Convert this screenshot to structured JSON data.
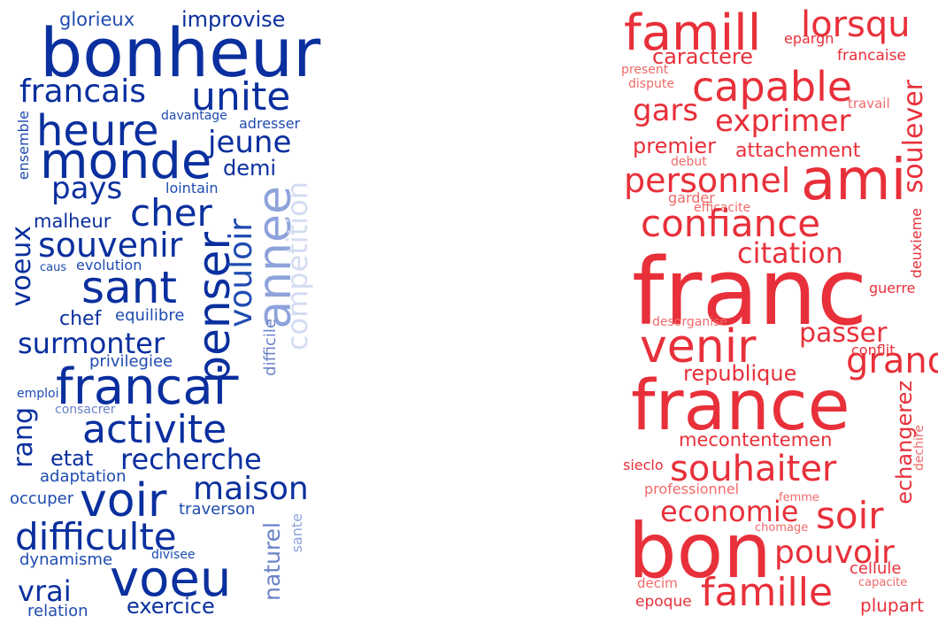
{
  "clouds": [
    {
      "id": "blue",
      "color": "#0a2f9e",
      "words": [
        "glorieux",
        "improvise",
        "bonheur",
        "francais",
        "unite",
        "heure",
        "monde",
        "jeune",
        "demi",
        "pays",
        "cher",
        "lointain",
        "davantage",
        "adresser",
        "ensemble",
        "malheur",
        "souvenir",
        "penser",
        "vouloir",
        "annee",
        "competition",
        "voeux",
        "sant",
        "caus",
        "evolution",
        "chef",
        "equilibre",
        "surmonter",
        "privilegiee",
        "difficile",
        "francai",
        "emploi",
        "consacrer",
        "rang",
        "activite",
        "etat",
        "recherche",
        "adaptation",
        "maison",
        "voir",
        "occuper",
        "traverson",
        "difficulte",
        "naturel",
        "sante",
        "divisee",
        "dynamisme",
        "vrai",
        "voeu",
        "exercice",
        "relation"
      ]
    },
    {
      "id": "red",
      "color": "#e8303a",
      "words": [
        "famill",
        "lorsqu",
        "epargn",
        "caractere",
        "francaise",
        "present",
        "capable",
        "dispute",
        "gars",
        "soulever",
        "travail",
        "exprimer",
        "premier",
        "attachement",
        "debut",
        "personnel",
        "ami",
        "garder",
        "efficacite",
        "confiance",
        "deuxieme",
        "citation",
        "franc",
        "guerre",
        "desorganise",
        "venir",
        "passer",
        "grand",
        "conflit",
        "republique",
        "france",
        "echangerez",
        "mecontentemen",
        "dechire",
        "souhaiter",
        "sieclo",
        "professionnel",
        "economie",
        "soir",
        "femme",
        "chomage",
        "bon",
        "pouvoir",
        "cellule",
        "decim",
        "capacite",
        "famille",
        "epoque",
        "plupart"
      ]
    }
  ]
}
